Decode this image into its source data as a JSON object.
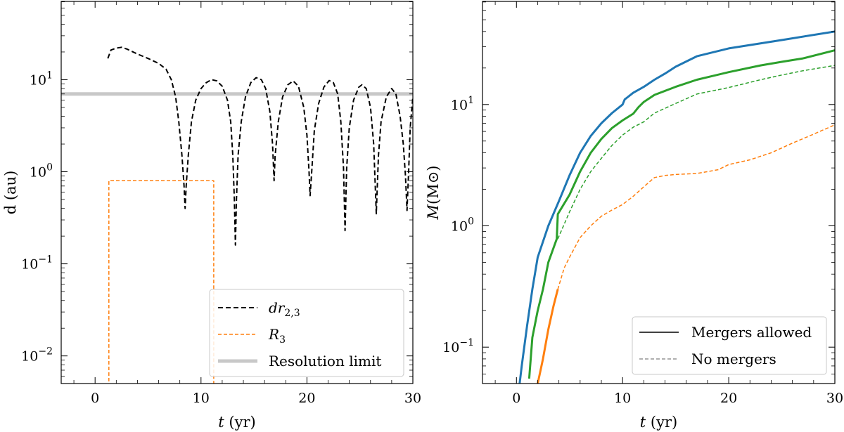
{
  "chart_data": [
    {
      "type": "line",
      "xlabel_var": "t",
      "xlabel_unit": "(yr)",
      "ylabel": "d (au)",
      "xlim": [
        -3.2,
        30
      ],
      "ylim_log10": [
        -2.3,
        1.85
      ],
      "yscale": "log",
      "xticks": [
        {
          "value": 0,
          "label": "0"
        },
        {
          "value": 10,
          "label": "10"
        },
        {
          "value": 20,
          "label": "20"
        },
        {
          "value": 30,
          "label": "30"
        }
      ],
      "yticks": [
        {
          "exp": 1,
          "base": "10",
          "sup": "1"
        },
        {
          "exp": 0,
          "base": "10",
          "sup": "0"
        },
        {
          "exp": -1,
          "base": "10",
          "sup": "−1"
        },
        {
          "exp": -2,
          "base": "10",
          "sup": "−2"
        }
      ],
      "legend_position": "lower-right",
      "series": [
        {
          "name": "dr2,3",
          "legend_main": "dr",
          "legend_sub": "2,3",
          "color": "#000000",
          "style": "dashed",
          "points": [
            [
              1.2,
              17
            ],
            [
              1.5,
              21
            ],
            [
              2,
              22
            ],
            [
              2.5,
              22.5
            ],
            [
              3,
              21.5
            ],
            [
              4,
              19
            ],
            [
              5,
              17
            ],
            [
              6,
              15
            ],
            [
              6.7,
              13
            ],
            [
              7.2,
              10
            ],
            [
              7.6,
              6.5
            ],
            [
              7.9,
              3.5
            ],
            [
              8.2,
              1.5
            ],
            [
              8.4,
              0.7
            ],
            [
              8.5,
              0.4
            ],
            [
              8.6,
              0.7
            ],
            [
              8.8,
              1.5
            ],
            [
              9.1,
              3.5
            ],
            [
              9.5,
              6
            ],
            [
              10,
              8
            ],
            [
              10.5,
              9.3
            ],
            [
              11,
              10
            ],
            [
              11.5,
              9.7
            ],
            [
              12,
              8.5
            ],
            [
              12.5,
              6
            ],
            [
              12.8,
              3.5
            ],
            [
              13,
              1.5
            ],
            [
              13.15,
              0.5
            ],
            [
              13.25,
              0.16
            ],
            [
              13.35,
              0.5
            ],
            [
              13.5,
              1.5
            ],
            [
              13.8,
              3.5
            ],
            [
              14.2,
              6.5
            ],
            [
              14.7,
              9.3
            ],
            [
              15.2,
              10.5
            ],
            [
              15.7,
              10
            ],
            [
              16.1,
              8
            ],
            [
              16.5,
              4.5
            ],
            [
              16.75,
              2
            ],
            [
              16.9,
              0.8
            ],
            [
              17,
              1.5
            ],
            [
              17.3,
              3.5
            ],
            [
              17.7,
              6.5
            ],
            [
              18.2,
              8.8
            ],
            [
              18.7,
              9.7
            ],
            [
              19.2,
              8.5
            ],
            [
              19.7,
              5
            ],
            [
              20,
              2.5
            ],
            [
              20.2,
              1
            ],
            [
              20.3,
              0.55
            ],
            [
              20.45,
              1
            ],
            [
              20.7,
              2.8
            ],
            [
              21.1,
              5.5
            ],
            [
              21.6,
              8.3
            ],
            [
              22.1,
              9.8
            ],
            [
              22.5,
              9.3
            ],
            [
              22.9,
              7
            ],
            [
              23.2,
              3.5
            ],
            [
              23.45,
              1.1
            ],
            [
              23.6,
              0.23
            ],
            [
              23.75,
              1.1
            ],
            [
              24,
              3
            ],
            [
              24.4,
              6
            ],
            [
              24.9,
              8.3
            ],
            [
              25.2,
              8.8
            ],
            [
              25.6,
              8
            ],
            [
              26,
              5
            ],
            [
              26.3,
              2
            ],
            [
              26.55,
              0.35
            ],
            [
              26.75,
              1.5
            ],
            [
              27,
              3.5
            ],
            [
              27.5,
              6.5
            ],
            [
              28,
              8
            ],
            [
              28.4,
              7
            ],
            [
              28.8,
              4
            ],
            [
              29.1,
              2
            ],
            [
              29.3,
              0.9
            ],
            [
              29.45,
              0.38
            ],
            [
              29.6,
              1
            ],
            [
              29.75,
              3
            ],
            [
              30,
              6.5
            ]
          ]
        },
        {
          "name": "R3",
          "legend_main": "R",
          "legend_sub": "3",
          "color": "#ff7f0e",
          "style": "dashed",
          "points": [
            [
              1.3,
              0.001
            ],
            [
              1.3,
              0.8
            ],
            [
              11.2,
              0.8
            ],
            [
              11.2,
              0.001
            ]
          ]
        },
        {
          "name": "Resolution limit",
          "legend_main": "Resolution limit",
          "legend_sub": "",
          "color": "#c8c8c8",
          "style": "solid",
          "points": [
            [
              -3.2,
              7
            ],
            [
              30,
              7
            ]
          ]
        }
      ]
    },
    {
      "type": "line",
      "xlabel_var": "t",
      "xlabel_unit": "(yr)",
      "ylabel_var": "M",
      "ylabel_unit": "(M⊙)",
      "xlim": [
        -3.2,
        30
      ],
      "ylim_log10": [
        -1.3,
        1.85
      ],
      "yscale": "log",
      "xticks": [
        {
          "value": 0,
          "label": "0"
        },
        {
          "value": 10,
          "label": "10"
        },
        {
          "value": 20,
          "label": "20"
        },
        {
          "value": 30,
          "label": "30"
        }
      ],
      "yticks": [
        {
          "exp": 1,
          "base": "10",
          "sup": "1"
        },
        {
          "exp": 0,
          "base": "10",
          "sup": "0"
        },
        {
          "exp": -1,
          "base": "10",
          "sup": "−1"
        }
      ],
      "legend_position": "lower-right",
      "legend": [
        {
          "label": "Mergers allowed",
          "style": "solid",
          "color": "#000000"
        },
        {
          "label": "No mergers",
          "style": "dashed",
          "color": "#808080"
        }
      ],
      "series": [
        {
          "color": "#1f77b4",
          "style": "solid",
          "width": 3,
          "points": [
            [
              0.3,
              0.05
            ],
            [
              0.5,
              0.07
            ],
            [
              1,
              0.15
            ],
            [
              1.5,
              0.3
            ],
            [
              2,
              0.55
            ],
            [
              3,
              1.0
            ],
            [
              4,
              1.6
            ],
            [
              5,
              2.6
            ],
            [
              6,
              4
            ],
            [
              7,
              5.5
            ],
            [
              8,
              7
            ],
            [
              9,
              8.5
            ],
            [
              10,
              10
            ],
            [
              10.2,
              11
            ],
            [
              11,
              12.5
            ],
            [
              12,
              14
            ],
            [
              13,
              16
            ],
            [
              14,
              18
            ],
            [
              15,
              20.5
            ],
            [
              17,
              25
            ],
            [
              20,
              29
            ],
            [
              25,
              34
            ],
            [
              30,
              40
            ]
          ]
        },
        {
          "color": "#2ca02c",
          "style": "solid",
          "width": 3,
          "points": [
            [
              1.2,
              0.055
            ],
            [
              1.5,
              0.12
            ],
            [
              2,
              0.2
            ],
            [
              2.5,
              0.3
            ],
            [
              3,
              0.5
            ],
            [
              3.8,
              0.78
            ],
            [
              3.9,
              1.25
            ],
            [
              5,
              1.8
            ],
            [
              6,
              2.8
            ],
            [
              7,
              4
            ],
            [
              8,
              5.2
            ],
            [
              9,
              6.4
            ],
            [
              10,
              7.4
            ],
            [
              11,
              8.4
            ],
            [
              11.5,
              9.5
            ],
            [
              12,
              10.5
            ],
            [
              13,
              12
            ],
            [
              15,
              14
            ],
            [
              17,
              16
            ],
            [
              20,
              18.5
            ],
            [
              23,
              21
            ],
            [
              25,
              22.5
            ],
            [
              27,
              24
            ],
            [
              30,
              28
            ]
          ]
        },
        {
          "color": "#2ca02c",
          "style": "dashed",
          "width": 1.5,
          "points": [
            [
              3.9,
              0.78
            ],
            [
              5,
              1.3
            ],
            [
              6,
              2
            ],
            [
              7,
              2.8
            ],
            [
              8,
              3.6
            ],
            [
              9,
              4.6
            ],
            [
              10,
              5.6
            ],
            [
              11,
              6.5
            ],
            [
              12,
              7.2
            ],
            [
              13,
              8.5
            ],
            [
              15,
              10.2
            ],
            [
              17,
              12.2
            ],
            [
              20,
              13.8
            ],
            [
              23,
              16
            ],
            [
              25,
              17.5
            ],
            [
              27,
              19
            ],
            [
              30,
              21
            ]
          ]
        },
        {
          "color": "#ff7f0e",
          "style": "solid",
          "width": 3,
          "points": [
            [
              2.0,
              0.05
            ],
            [
              2.5,
              0.08
            ],
            [
              3,
              0.14
            ],
            [
              3.5,
              0.22
            ],
            [
              3.9,
              0.3
            ]
          ]
        },
        {
          "color": "#ff7f0e",
          "style": "dashed",
          "width": 1.5,
          "points": [
            [
              3.9,
              0.3
            ],
            [
              4.5,
              0.45
            ],
            [
              5,
              0.55
            ],
            [
              6,
              0.8
            ],
            [
              7,
              1.0
            ],
            [
              8,
              1.2
            ],
            [
              9,
              1.35
            ],
            [
              10,
              1.5
            ],
            [
              11,
              1.75
            ],
            [
              12,
              2.1
            ],
            [
              13,
              2.5
            ],
            [
              14,
              2.6
            ],
            [
              15,
              2.65
            ],
            [
              17,
              2.7
            ],
            [
              19,
              2.9
            ],
            [
              20,
              3.2
            ],
            [
              22,
              3.5
            ],
            [
              24,
              4.0
            ],
            [
              26,
              4.8
            ],
            [
              28,
              5.7
            ],
            [
              30,
              6.8
            ]
          ]
        }
      ]
    }
  ]
}
